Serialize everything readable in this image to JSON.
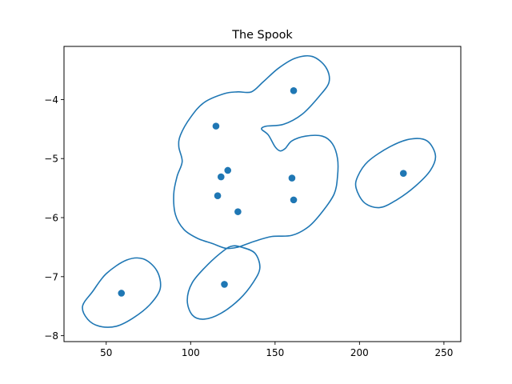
{
  "chart_data": {
    "type": "scatter",
    "title": "The Spook",
    "xlabel": "",
    "ylabel": "",
    "xlim": [
      25,
      260
    ],
    "ylim": [
      -8.1,
      -3.1
    ],
    "xticks": [
      50,
      100,
      150,
      200,
      250
    ],
    "yticks": [
      -8,
      -7,
      -6,
      -5,
      -4
    ],
    "grid": false,
    "colors": {
      "series": "#1f77b4",
      "axes": "#000000",
      "background": "#ffffff"
    },
    "points": [
      {
        "x": 59,
        "y": -7.28
      },
      {
        "x": 120,
        "y": -7.13
      },
      {
        "x": 115,
        "y": -4.45
      },
      {
        "x": 118,
        "y": -5.31
      },
      {
        "x": 122,
        "y": -5.2
      },
      {
        "x": 116,
        "y": -5.63
      },
      {
        "x": 128,
        "y": -5.9
      },
      {
        "x": 160,
        "y": -5.33
      },
      {
        "x": 161,
        "y": -5.7
      },
      {
        "x": 161,
        "y": -3.85
      },
      {
        "x": 226,
        "y": -5.25
      }
    ],
    "contours": [
      [
        [
          39,
          -7.72
        ],
        [
          46,
          -7.84
        ],
        [
          56,
          -7.84
        ],
        [
          66,
          -7.7
        ],
        [
          76,
          -7.47
        ],
        [
          82,
          -7.2
        ],
        [
          80,
          -6.9
        ],
        [
          72,
          -6.7
        ],
        [
          62,
          -6.72
        ],
        [
          50,
          -6.95
        ],
        [
          42,
          -7.25
        ],
        [
          36,
          -7.5
        ]
      ],
      [
        [
          198,
          -5.5
        ],
        [
          203,
          -5.75
        ],
        [
          212,
          -5.83
        ],
        [
          222,
          -5.7
        ],
        [
          233,
          -5.47
        ],
        [
          242,
          -5.2
        ],
        [
          245,
          -4.95
        ],
        [
          240,
          -4.7
        ],
        [
          230,
          -4.67
        ],
        [
          218,
          -4.8
        ],
        [
          205,
          -5.05
        ],
        [
          199,
          -5.3
        ]
      ],
      [
        [
          108,
          -7.72
        ],
        [
          118,
          -7.62
        ],
        [
          129,
          -7.38
        ],
        [
          137,
          -7.1
        ],
        [
          141,
          -6.85
        ],
        [
          138,
          -6.6
        ],
        [
          130,
          -6.5
        ],
        [
          125,
          -6.48
        ],
        [
          120,
          -6.55
        ],
        [
          110,
          -6.8
        ],
        [
          101,
          -7.1
        ],
        [
          98,
          -7.4
        ],
        [
          101,
          -7.65
        ]
      ],
      [
        [
          121,
          -6.52
        ],
        [
          113,
          -6.44
        ],
        [
          104,
          -6.35
        ],
        [
          96,
          -6.2
        ],
        [
          91,
          -5.95
        ],
        [
          90,
          -5.6
        ],
        [
          92,
          -5.3
        ],
        [
          95,
          -5.05
        ],
        [
          93,
          -4.8
        ],
        [
          94,
          -4.6
        ],
        [
          100,
          -4.3
        ],
        [
          108,
          -4.05
        ],
        [
          120,
          -3.9
        ],
        [
          128,
          -3.87
        ],
        [
          136,
          -3.87
        ],
        [
          143,
          -3.7
        ],
        [
          152,
          -3.47
        ],
        [
          162,
          -3.3
        ],
        [
          172,
          -3.27
        ],
        [
          180,
          -3.45
        ],
        [
          182,
          -3.7
        ],
        [
          176,
          -3.95
        ],
        [
          166,
          -4.25
        ],
        [
          155,
          -4.42
        ],
        [
          145,
          -4.45
        ],
        [
          142,
          -4.5
        ],
        [
          146,
          -4.6
        ],
        [
          150,
          -4.8
        ],
        [
          153,
          -4.87
        ],
        [
          156,
          -4.83
        ],
        [
          160,
          -4.7
        ],
        [
          168,
          -4.62
        ],
        [
          178,
          -4.62
        ],
        [
          184,
          -4.75
        ],
        [
          187,
          -5.0
        ],
        [
          187,
          -5.3
        ],
        [
          185,
          -5.6
        ],
        [
          178,
          -5.9
        ],
        [
          170,
          -6.15
        ],
        [
          160,
          -6.3
        ],
        [
          148,
          -6.32
        ],
        [
          138,
          -6.4
        ],
        [
          133,
          -6.45
        ],
        [
          128,
          -6.5
        ]
      ]
    ]
  }
}
